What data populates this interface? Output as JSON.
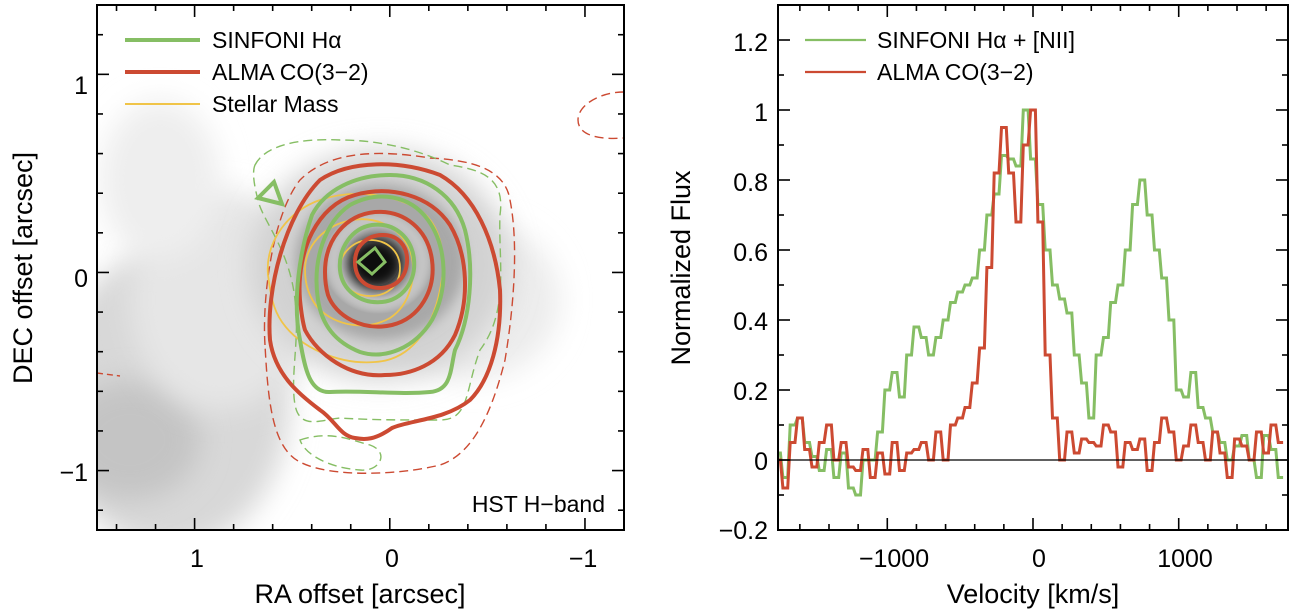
{
  "chart_data": [
    {
      "type": "contour",
      "xlabel": "RA offset [arcsec]",
      "ylabel": "DEC offset [arcsec]",
      "xlim": [
        1.5,
        -1.2
      ],
      "ylim": [
        -1.3,
        1.35
      ],
      "xticks": [
        1,
        0,
        -1
      ],
      "xtick_labels": [
        "1",
        "0",
        "−1"
      ],
      "yticks": [
        1,
        0,
        -1
      ],
      "ytick_labels": [
        "1",
        "0",
        "−1"
      ],
      "annotation": "HST H−band",
      "legend": [
        {
          "label": "SINFONI Hα",
          "color": "#86be64"
        },
        {
          "label": "ALMA CO(3−2)",
          "color": "#cc4a32"
        },
        {
          "label": "Stellar Mass",
          "color": "#f0c448"
        }
      ],
      "legend_position": "top-left",
      "background": "HST H-band image (grayscale)"
    },
    {
      "type": "line",
      "step": true,
      "xlabel": "Velocity [km/s]",
      "ylabel": "Normalized Flux",
      "xlim": [
        -1750,
        1750
      ],
      "ylim": [
        -0.2,
        1.3
      ],
      "xticks": [
        -1000,
        0,
        1000
      ],
      "xtick_labels": [
        "−1000",
        "0",
        "1000"
      ],
      "yticks": [
        -0.2,
        0,
        0.2,
        0.4,
        0.6,
        0.8,
        1,
        1.2
      ],
      "ytick_labels": [
        "−0.2",
        "0",
        "0.2",
        "0.4",
        "0.6",
        "0.8",
        "1",
        "1.2"
      ],
      "zero_line": 0,
      "legend_position": "top-left",
      "step_width": 33,
      "series": [
        {
          "name": "SINFONI Hα + [NII]",
          "color": "#86be64",
          "x": [
            -1750,
            -1700,
            -1650,
            -1600,
            -1550,
            -1500,
            -1450,
            -1400,
            -1350,
            -1300,
            -1250,
            -1200,
            -1150,
            -1100,
            -1050,
            -1000,
            -950,
            -900,
            -850,
            -800,
            -750,
            -700,
            -650,
            -600,
            -550,
            -500,
            -450,
            -400,
            -350,
            -300,
            -250,
            -200,
            -150,
            -100,
            -50,
            0,
            50,
            100,
            150,
            200,
            250,
            300,
            350,
            400,
            450,
            500,
            550,
            600,
            650,
            700,
            750,
            800,
            850,
            900,
            950,
            1000,
            1050,
            1100,
            1150,
            1200,
            1250,
            1300,
            1350,
            1400,
            1450,
            1500,
            1550,
            1600,
            1650,
            1700
          ],
          "y": [
            0.02,
            -0.05,
            0.1,
            0.12,
            0.05,
            0.01,
            -0.03,
            0.03,
            -0.05,
            0.02,
            -0.08,
            -0.1,
            0.0,
            0.0,
            0.08,
            0.2,
            0.25,
            0.18,
            0.3,
            0.38,
            0.35,
            0.3,
            0.35,
            0.4,
            0.45,
            0.48,
            0.5,
            0.52,
            0.6,
            0.7,
            0.76,
            0.87,
            0.86,
            0.84,
            1.0,
            0.86,
            0.73,
            0.6,
            0.5,
            0.46,
            0.42,
            0.3,
            0.22,
            0.12,
            0.3,
            0.35,
            0.45,
            0.5,
            0.6,
            0.73,
            0.8,
            0.7,
            0.6,
            0.52,
            0.4,
            0.2,
            0.18,
            0.25,
            0.15,
            0.12,
            0.08,
            0.05,
            0.0,
            0.04,
            0.07,
            0.0,
            -0.05,
            0.07,
            0.03,
            -0.05
          ]
        },
        {
          "name": "ALMA CO(3−2)",
          "color": "#cc4a32",
          "x": [
            -1750,
            -1700,
            -1650,
            -1600,
            -1550,
            -1500,
            -1450,
            -1400,
            -1350,
            -1300,
            -1250,
            -1200,
            -1150,
            -1100,
            -1050,
            -1000,
            -950,
            -900,
            -850,
            -800,
            -750,
            -700,
            -650,
            -600,
            -550,
            -500,
            -450,
            -400,
            -350,
            -300,
            -250,
            -200,
            -150,
            -100,
            -50,
            0,
            50,
            100,
            150,
            200,
            250,
            300,
            350,
            400,
            450,
            500,
            550,
            600,
            650,
            700,
            750,
            800,
            850,
            900,
            950,
            1000,
            1050,
            1100,
            1150,
            1200,
            1250,
            1300,
            1350,
            1400,
            1450,
            1500,
            1550,
            1600,
            1650,
            1700
          ],
          "y": [
            0.0,
            -0.08,
            0.05,
            0.12,
            0.03,
            -0.02,
            0.05,
            0.1,
            0.0,
            0.05,
            -0.02,
            -0.03,
            0.03,
            -0.05,
            0.02,
            -0.04,
            0.05,
            -0.03,
            0.02,
            0.03,
            0.05,
            0.0,
            0.08,
            0.0,
            0.1,
            0.12,
            0.15,
            0.22,
            0.32,
            0.55,
            0.82,
            0.95,
            0.82,
            0.68,
            0.9,
            1.0,
            0.68,
            0.3,
            0.12,
            0.0,
            0.08,
            0.02,
            0.06,
            0.05,
            0.04,
            0.1,
            0.08,
            -0.02,
            0.05,
            0.03,
            0.06,
            -0.03,
            0.05,
            0.12,
            0.08,
            0.0,
            0.04,
            0.1,
            0.05,
            0.0,
            0.08,
            0.02,
            -0.05,
            0.06,
            0.04,
            0.0,
            0.08,
            0.02,
            0.1,
            0.05
          ]
        }
      ]
    }
  ]
}
